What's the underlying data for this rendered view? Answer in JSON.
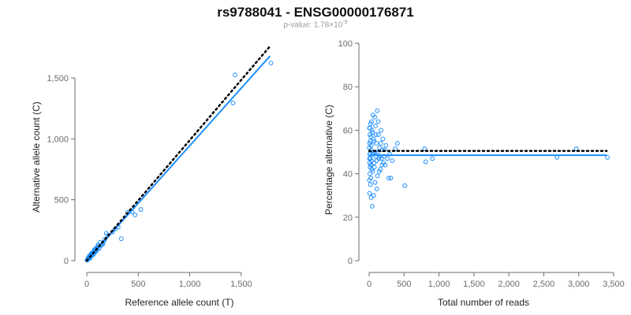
{
  "title": "rs9788041 - ENSG00000176871",
  "subtitle": {
    "prefix": "p-value: 1.78×10",
    "exponent": "-9"
  },
  "colors": {
    "points": "#1E90FF",
    "fit": "#1E90FF",
    "reference": "#000000",
    "axis": "#6b6b6b"
  },
  "chart_data": [
    {
      "type": "scatter",
      "xlabel": "Reference allele count (T)",
      "ylabel": "Alternative allele count (C)",
      "xlim": [
        0,
        1800
      ],
      "ylim": [
        0,
        1700
      ],
      "xticks": [
        0,
        500,
        1000,
        1500
      ],
      "xtick_labels": [
        "0",
        "500",
        "1,000",
        "1,500"
      ],
      "yticks": [
        0,
        500,
        1000,
        1500
      ],
      "ytick_labels": [
        "0",
        "500",
        "1,000",
        "1,500"
      ],
      "reference_line": {
        "x": [
          0,
          1780
        ],
        "y": [
          0,
          1760
        ]
      },
      "fit_line": {
        "x": [
          0,
          1780
        ],
        "y": [
          0,
          1680
        ]
      },
      "points": [
        [
          1789,
          1622
        ],
        [
          1440,
          1525
        ],
        [
          1420,
          1295
        ],
        [
          525,
          420
        ],
        [
          440,
          400
        ],
        [
          470,
          375
        ],
        [
          395,
          395
        ],
        [
          335,
          180
        ],
        [
          305,
          275
        ],
        [
          275,
          260
        ],
        [
          250,
          235
        ],
        [
          205,
          210
        ],
        [
          190,
          225
        ],
        [
          175,
          175
        ],
        [
          160,
          150
        ],
        [
          145,
          130
        ],
        [
          130,
          150
        ],
        [
          115,
          120
        ],
        [
          100,
          110
        ],
        [
          95,
          85
        ],
        [
          85,
          95
        ],
        [
          80,
          70
        ],
        [
          75,
          90
        ],
        [
          70,
          60
        ],
        [
          65,
          70
        ],
        [
          60,
          55
        ],
        [
          55,
          65
        ],
        [
          50,
          45
        ],
        [
          45,
          50
        ],
        [
          40,
          40
        ],
        [
          35,
          45
        ],
        [
          32,
          30
        ],
        [
          28,
          35
        ],
        [
          25,
          22
        ],
        [
          22,
          28
        ],
        [
          20,
          18
        ],
        [
          18,
          22
        ],
        [
          15,
          14
        ],
        [
          12,
          16
        ],
        [
          10,
          10
        ],
        [
          8,
          12
        ],
        [
          6,
          6
        ],
        [
          5,
          8
        ],
        [
          3,
          4
        ],
        [
          120,
          100
        ],
        [
          105,
          95
        ],
        [
          90,
          100
        ],
        [
          140,
          125
        ],
        [
          155,
          135
        ],
        [
          62,
          48
        ],
        [
          42,
          55
        ],
        [
          38,
          30
        ],
        [
          26,
          40
        ],
        [
          14,
          24
        ],
        [
          30,
          20
        ],
        [
          48,
          62
        ],
        [
          72,
          82
        ],
        [
          88,
          76
        ],
        [
          110,
          130
        ]
      ]
    },
    {
      "type": "scatter",
      "xlabel": "Total number of reads",
      "ylabel": "Percentage alternative (C)",
      "xlim": [
        0,
        3500
      ],
      "ylim": [
        0,
        100
      ],
      "xticks": [
        0,
        500,
        1000,
        1500,
        2000,
        2500,
        3000,
        3500
      ],
      "xtick_labels": [
        "0",
        "500",
        "1,000",
        "1,500",
        "2,000",
        "2,500",
        "3,000",
        "3,500"
      ],
      "yticks": [
        0,
        20,
        40,
        60,
        80,
        100
      ],
      "ytick_labels": [
        "0",
        "20",
        "40",
        "60",
        "80",
        "100"
      ],
      "reference_line": {
        "x": [
          0,
          3400
        ],
        "y": [
          50.5,
          50.5
        ]
      },
      "fit_line": {
        "x": [
          0,
          3400
        ],
        "y": [
          48.5,
          48.5
        ]
      },
      "points": [
        [
          3411,
          47.5
        ],
        [
          2965,
          51.5
        ],
        [
          2690,
          47.5
        ],
        [
          905,
          47
        ],
        [
          810,
          45.5
        ],
        [
          795,
          51.5
        ],
        [
          510,
          34.5
        ],
        [
          405,
          54
        ],
        [
          375,
          51.5
        ],
        [
          330,
          46
        ],
        [
          310,
          38
        ],
        [
          295,
          49
        ],
        [
          280,
          38
        ],
        [
          260,
          47
        ],
        [
          240,
          53
        ],
        [
          220,
          51
        ],
        [
          205,
          45
        ],
        [
          195,
          56
        ],
        [
          185,
          44
        ],
        [
          170,
          60
        ],
        [
          160,
          42
        ],
        [
          150,
          52
        ],
        [
          140,
          47
        ],
        [
          130,
          64
        ],
        [
          120,
          39
        ],
        [
          115,
          69
        ],
        [
          110,
          33
        ],
        [
          100,
          58
        ],
        [
          95,
          48
        ],
        [
          90,
          62
        ],
        [
          85,
          36
        ],
        [
          80,
          66
        ],
        [
          75,
          43
        ],
        [
          70,
          55
        ],
        [
          65,
          30
        ],
        [
          60,
          50
        ],
        [
          55,
          67
        ],
        [
          50,
          41
        ],
        [
          45,
          25
        ],
        [
          40,
          60
        ],
        [
          35,
          46
        ],
        [
          30,
          53
        ],
        [
          28,
          29
        ],
        [
          25,
          57
        ],
        [
          22,
          44
        ],
        [
          20,
          63
        ],
        [
          18,
          35
        ],
        [
          15,
          49
        ],
        [
          12,
          58
        ],
        [
          10,
          40
        ],
        [
          8,
          54
        ],
        [
          6,
          31
        ],
        [
          5,
          61
        ],
        [
          4,
          47
        ],
        [
          3,
          37
        ],
        [
          2,
          52
        ],
        [
          88,
          50
        ],
        [
          72,
          45
        ],
        [
          64,
          56
        ],
        [
          52,
          49
        ],
        [
          46,
          59
        ],
        [
          38,
          42
        ],
        [
          33,
          64
        ],
        [
          27,
          51
        ],
        [
          24,
          38
        ],
        [
          19,
          47
        ],
        [
          16,
          55
        ],
        [
          14,
          43
        ],
        [
          11,
          61
        ],
        [
          9,
          49
        ],
        [
          7,
          45
        ],
        [
          102,
          54
        ],
        [
          108,
          46
        ],
        [
          125,
          50
        ],
        [
          135,
          58
        ],
        [
          145,
          41
        ],
        [
          155,
          48
        ],
        [
          165,
          54
        ],
        [
          178,
          47
        ],
        [
          190,
          51
        ],
        [
          215,
          48
        ],
        [
          230,
          44
        ]
      ]
    }
  ]
}
